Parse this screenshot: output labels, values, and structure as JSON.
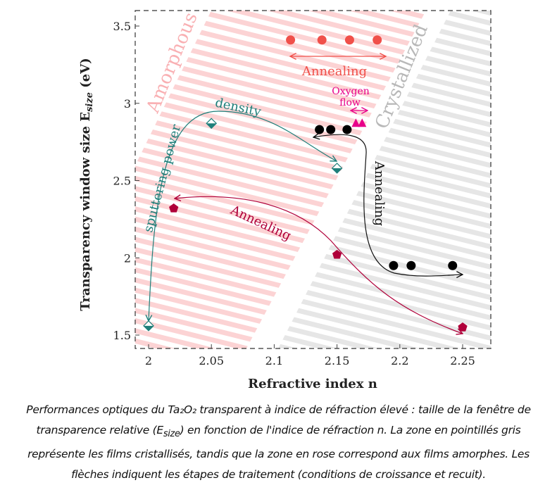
{
  "chart_data": {
    "type": "scatter",
    "xlabel": "Refractive index n",
    "ylabel": "Transparency window size E",
    "ylabel_sub": "size",
    "ylabel_unit": "(eV)",
    "xlim": [
      1.989,
      2.272
    ],
    "ylim": [
      1.413,
      3.6
    ],
    "xticks": [
      "2",
      "2.05",
      "2.1",
      "2.15",
      "2.2",
      "2.25"
    ],
    "xtick_values": [
      2,
      2.05,
      2.1,
      2.15,
      2.2,
      2.25
    ],
    "yticks": [
      "1.5",
      "2",
      "2.5",
      "3",
      "3.5"
    ],
    "ytick_values": [
      1.5,
      2,
      2.5,
      3,
      3.5
    ],
    "series": [
      {
        "name": "red circles",
        "marker": "circle",
        "color": "#f0504a",
        "x": [
          2.113,
          2.138,
          2.16,
          2.182
        ],
        "y": [
          3.41,
          3.41,
          3.41,
          3.41
        ]
      },
      {
        "name": "teal diamonds",
        "marker": "diamond",
        "color": "#1f7f7a",
        "x": [
          2.0,
          2.05,
          2.15
        ],
        "y": [
          1.56,
          2.87,
          2.58
        ]
      },
      {
        "name": "crimson pentagons",
        "marker": "pentagon",
        "color": "#b0003a",
        "x": [
          2.02,
          2.15,
          2.25
        ],
        "y": [
          2.32,
          2.02,
          1.55
        ]
      },
      {
        "name": "black circles",
        "marker": "circle",
        "color": "#000000",
        "x": [
          2.136,
          2.145,
          2.158,
          2.195,
          2.209,
          2.242
        ],
        "y": [
          2.83,
          2.83,
          2.83,
          1.95,
          1.95,
          1.95
        ]
      },
      {
        "name": "magenta triangles",
        "marker": "triangle",
        "color": "#e8008a",
        "x": [
          2.165,
          2.17
        ],
        "y": [
          2.87,
          2.87
        ]
      }
    ],
    "annotations": {
      "amorphous": "Amorphous",
      "crystallized": "Crystallized",
      "annealing_top": "Annealing",
      "oxygen": "Oxygen",
      "flow": "flow",
      "density": "density",
      "sputtering": "sputtering power",
      "annealing_crimson": "Annealing",
      "annealing_black": "Annealing"
    },
    "colors": {
      "pink": "#fcd3d4",
      "gray": "#e6e6e6",
      "teal": "#1f7f7a",
      "crimson": "#b0003a",
      "red": "#f0504a",
      "magenta": "#e8008a"
    }
  },
  "caption": {
    "part1": "Performances optiques du Ta₂O₂ transparent à indice de réfraction élevé : taille de la fenêtre de transparence relative (E",
    "sub": "size",
    "part2": ") en fonction de l'indice de réfraction n. La zone en pointillés gris représente les films cristallisés, tandis que la zone en rose correspond aux films amorphes. Les flèches indiquent les étapes de traitement (conditions de croissance et recuit)."
  }
}
